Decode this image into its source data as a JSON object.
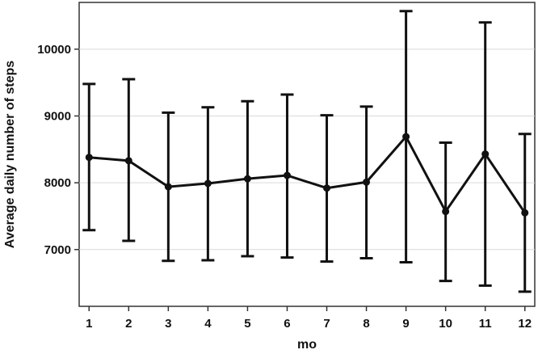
{
  "chart_data": {
    "type": "line",
    "title": "",
    "xlabel": "mo",
    "ylabel": "Average daily number of steps",
    "x": [
      1,
      2,
      3,
      4,
      5,
      6,
      7,
      8,
      9,
      10,
      11,
      12
    ],
    "x_tick_labels": [
      "1",
      "2",
      "3",
      "4",
      "5",
      "6",
      "7",
      "8",
      "9",
      "10",
      "11",
      "12"
    ],
    "y_ticks": [
      7000,
      8000,
      9000,
      10000
    ],
    "y_tick_labels": [
      "7000",
      "8000",
      "9000",
      "10000"
    ],
    "xlim": [
      0.75,
      12.25
    ],
    "ylim": [
      6150,
      10700
    ],
    "grid": "horizontal",
    "series": [
      {
        "values": [
          8380,
          8330,
          7940,
          7990,
          8060,
          8110,
          7920,
          8010,
          8690,
          7570,
          8430,
          7550
        ],
        "upper": [
          9480,
          9550,
          9050,
          9130,
          9220,
          9320,
          9010,
          9140,
          10570,
          8600,
          10400,
          8730
        ],
        "lower": [
          7290,
          7130,
          6830,
          6840,
          6900,
          6880,
          6820,
          6870,
          6810,
          6530,
          6460,
          6370
        ],
        "color": "#111111"
      }
    ]
  }
}
